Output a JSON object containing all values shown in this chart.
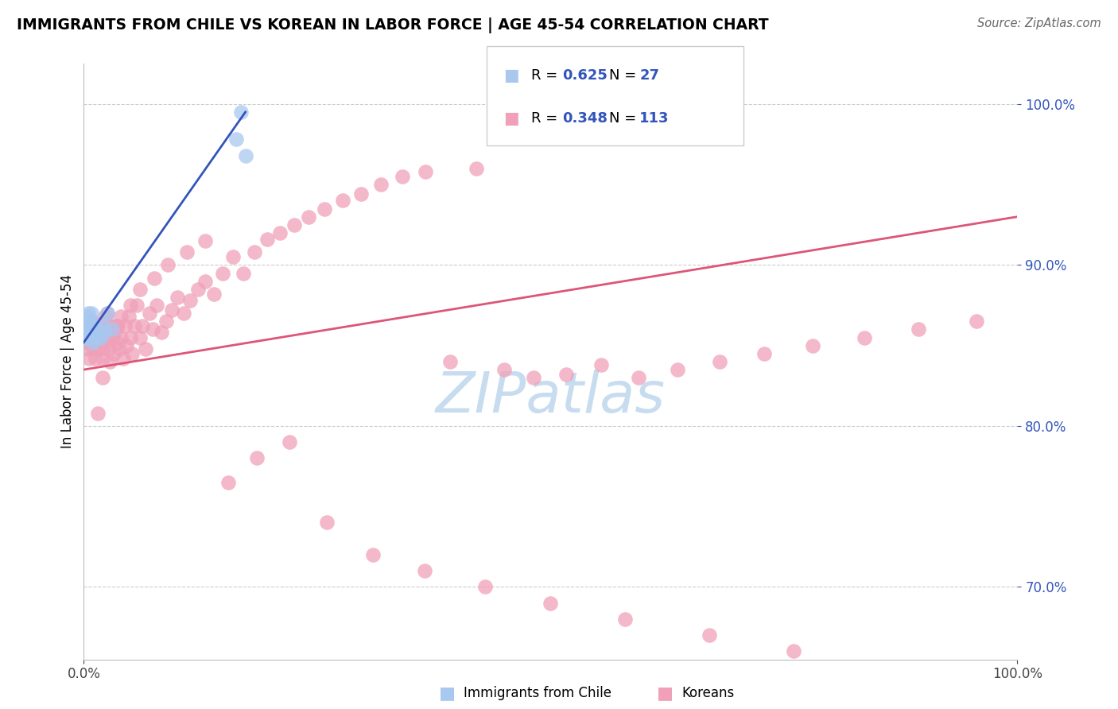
{
  "title": "IMMIGRANTS FROM CHILE VS KOREAN IN LABOR FORCE | AGE 45-54 CORRELATION CHART",
  "source": "Source: ZipAtlas.com",
  "ylabel": "In Labor Force | Age 45-54",
  "chile_color": "#A8C8F0",
  "korean_color": "#F0A0B8",
  "blue_line_color": "#3355BB",
  "pink_line_color": "#DD5577",
  "watermark_color": "#C8DCF0",
  "legend_text_color": "#3355BB",
  "right_tick_color": "#3355BB",
  "chile_x": [
    0.001,
    0.002,
    0.003,
    0.003,
    0.004,
    0.004,
    0.005,
    0.005,
    0.006,
    0.007,
    0.008,
    0.008,
    0.009,
    0.01,
    0.01,
    0.011,
    0.012,
    0.013,
    0.015,
    0.018,
    0.02,
    0.022,
    0.025,
    0.03,
    0.163,
    0.168,
    0.173
  ],
  "chile_y": [
    0.855,
    0.858,
    0.862,
    0.868,
    0.86,
    0.855,
    0.87,
    0.862,
    0.858,
    0.865,
    0.855,
    0.87,
    0.86,
    0.852,
    0.858,
    0.862,
    0.855,
    0.86,
    0.858,
    0.855,
    0.862,
    0.858,
    0.87,
    0.86,
    0.978,
    0.995,
    0.968
  ],
  "korean_x": [
    0.002,
    0.003,
    0.004,
    0.005,
    0.006,
    0.006,
    0.007,
    0.008,
    0.009,
    0.01,
    0.01,
    0.011,
    0.012,
    0.012,
    0.013,
    0.014,
    0.015,
    0.015,
    0.016,
    0.017,
    0.018,
    0.019,
    0.02,
    0.02,
    0.021,
    0.022,
    0.023,
    0.025,
    0.026,
    0.027,
    0.028,
    0.03,
    0.031,
    0.032,
    0.033,
    0.035,
    0.036,
    0.038,
    0.04,
    0.042,
    0.044,
    0.046,
    0.048,
    0.05,
    0.052,
    0.054,
    0.057,
    0.06,
    0.063,
    0.066,
    0.07,
    0.074,
    0.078,
    0.083,
    0.088,
    0.094,
    0.1,
    0.107,
    0.114,
    0.122,
    0.13,
    0.139,
    0.149,
    0.16,
    0.171,
    0.183,
    0.196,
    0.21,
    0.225,
    0.241,
    0.258,
    0.277,
    0.297,
    0.318,
    0.341,
    0.366,
    0.392,
    0.42,
    0.45,
    0.482,
    0.517,
    0.554,
    0.594,
    0.636,
    0.681,
    0.729,
    0.781,
    0.836,
    0.894,
    0.956,
    0.015,
    0.02,
    0.025,
    0.03,
    0.035,
    0.04,
    0.05,
    0.06,
    0.075,
    0.09,
    0.11,
    0.13,
    0.155,
    0.185,
    0.22,
    0.26,
    0.31,
    0.365,
    0.43,
    0.5,
    0.58,
    0.67,
    0.76
  ],
  "korean_y": [
    0.852,
    0.858,
    0.848,
    0.855,
    0.862,
    0.842,
    0.858,
    0.852,
    0.865,
    0.848,
    0.86,
    0.855,
    0.842,
    0.858,
    0.852,
    0.862,
    0.848,
    0.858,
    0.852,
    0.855,
    0.862,
    0.848,
    0.855,
    0.842,
    0.86,
    0.852,
    0.868,
    0.855,
    0.848,
    0.862,
    0.84,
    0.855,
    0.862,
    0.845,
    0.858,
    0.852,
    0.862,
    0.848,
    0.855,
    0.842,
    0.862,
    0.85,
    0.868,
    0.855,
    0.845,
    0.862,
    0.875,
    0.855,
    0.862,
    0.848,
    0.87,
    0.86,
    0.875,
    0.858,
    0.865,
    0.872,
    0.88,
    0.87,
    0.878,
    0.885,
    0.89,
    0.882,
    0.895,
    0.905,
    0.895,
    0.908,
    0.916,
    0.92,
    0.925,
    0.93,
    0.935,
    0.94,
    0.944,
    0.95,
    0.955,
    0.958,
    0.84,
    0.96,
    0.835,
    0.83,
    0.832,
    0.838,
    0.83,
    0.835,
    0.84,
    0.845,
    0.85,
    0.855,
    0.86,
    0.865,
    0.808,
    0.83,
    0.87,
    0.855,
    0.862,
    0.868,
    0.875,
    0.885,
    0.892,
    0.9,
    0.908,
    0.915,
    0.765,
    0.78,
    0.79,
    0.74,
    0.72,
    0.71,
    0.7,
    0.69,
    0.68,
    0.67,
    0.66
  ],
  "blue_line_x": [
    0.0,
    0.173
  ],
  "blue_line_y": [
    0.852,
    0.995
  ],
  "pink_line_x": [
    0.0,
    1.0
  ],
  "pink_line_y": [
    0.835,
    0.93
  ],
  "yticks": [
    0.7,
    0.8,
    0.9,
    1.0
  ],
  "xticks": [
    0.0,
    1.0
  ],
  "xlim": [
    0.0,
    1.0
  ],
  "ylim": [
    0.655,
    1.025
  ]
}
